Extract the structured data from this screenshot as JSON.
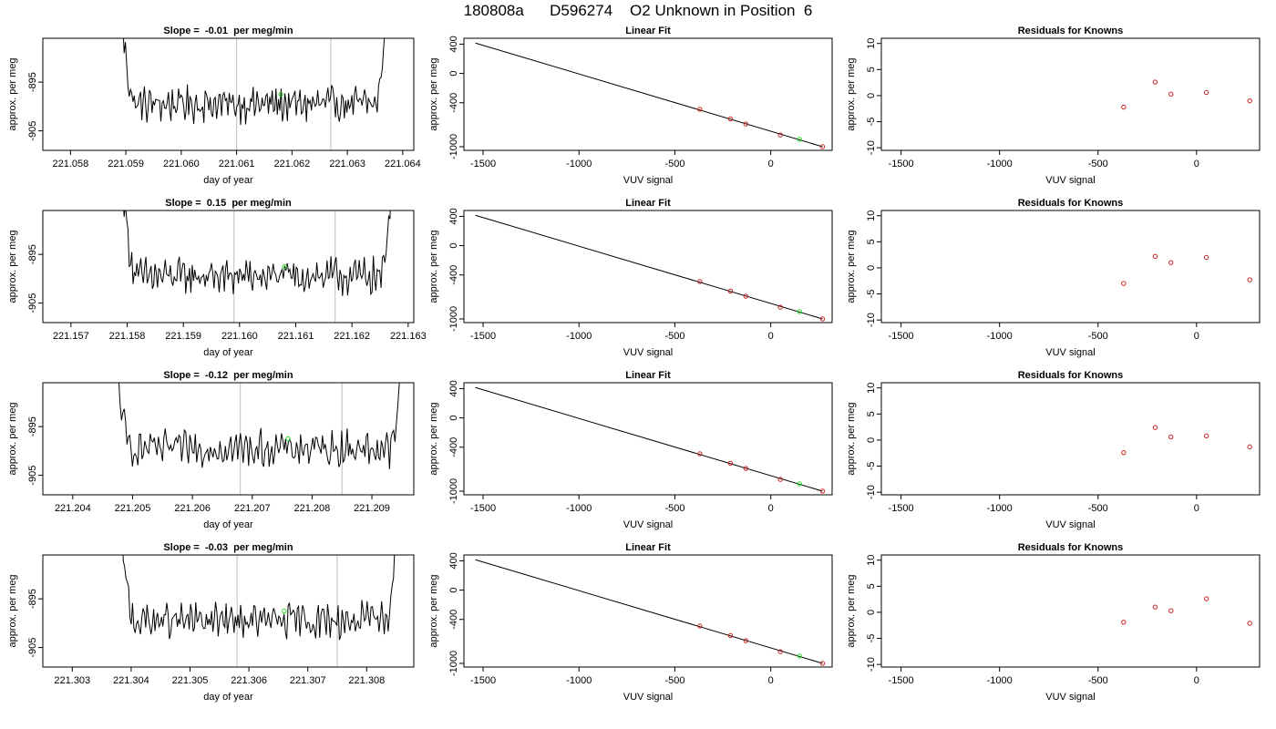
{
  "title": "180808a      D596274    O2 Unknown in Position  6",
  "rows": [
    {
      "timeseries": {
        "type": "line",
        "title": "Slope =  -0.01  per meg/min",
        "xlabel": "day of year",
        "ylabel": "approx. per meg",
        "xlim": [
          221.0575,
          221.0642
        ],
        "ylim": [
          -909,
          -886
        ],
        "xticks": [
          221.058,
          221.059,
          221.06,
          221.061,
          221.062,
          221.063,
          221.064
        ],
        "xtick_labels": [
          "221.058",
          "221.059",
          "221.060",
          "221.061",
          "221.062",
          "221.063",
          "221.064"
        ],
        "yticks": [
          -895,
          -905
        ],
        "ytick_labels": [
          "-895",
          "-905"
        ],
        "x_start": 221.0589,
        "x_end": 221.0637,
        "vlines": [
          221.061,
          221.0627
        ],
        "marker": {
          "x": 221.0618,
          "y": -897.5
        }
      },
      "fit": {
        "type": "scatter",
        "title": "Linear Fit",
        "xlabel": "VUV signal",
        "ylabel": "approx. per meg",
        "xlim": [
          -1600,
          320
        ],
        "ylim": [
          -1050,
          480
        ],
        "xticks": [
          -1500,
          -1000,
          -500,
          0
        ],
        "xtick_labels": [
          "-1500",
          "-1000",
          "-500",
          "0"
        ],
        "yticks": [
          400,
          0,
          -400,
          -1000
        ],
        "ytick_labels": [
          "400",
          "0",
          "-400",
          "-1000"
        ],
        "line": [
          [
            -1540,
            415
          ],
          [
            270,
            -1000
          ]
        ],
        "knowns": [
          [
            -370,
            -490
          ],
          [
            -210,
            -620
          ],
          [
            -130,
            -690
          ],
          [
            50,
            -840
          ],
          [
            270,
            -1000
          ]
        ],
        "unknown": [
          150,
          -900
        ]
      },
      "residuals": {
        "type": "scatter",
        "title": "Residuals for Knowns",
        "xlabel": "VUV signal",
        "ylabel": "approx. per meg",
        "xlim": [
          -1600,
          320
        ],
        "ylim": [
          -10.5,
          11
        ],
        "xticks": [
          -1500,
          -1000,
          -500,
          0
        ],
        "xtick_labels": [
          "-1500",
          "-1000",
          "-500",
          "0"
        ],
        "yticks": [
          10,
          5,
          0,
          -5,
          -10
        ],
        "ytick_labels": [
          "10",
          "5",
          "0",
          "-5",
          "-10"
        ],
        "points": [
          [
            -370,
            -2.2
          ],
          [
            -210,
            2.6
          ],
          [
            -130,
            0.3
          ],
          [
            50,
            0.6
          ],
          [
            270,
            -1.0
          ]
        ]
      }
    },
    {
      "timeseries": {
        "type": "line",
        "title": "Slope =  0.15  per meg/min",
        "xlabel": "day of year",
        "ylabel": "approx. per meg",
        "xlim": [
          221.1565,
          221.1631
        ],
        "ylim": [
          -909,
          -886
        ],
        "xticks": [
          221.157,
          221.158,
          221.159,
          221.16,
          221.161,
          221.162,
          221.163
        ],
        "xtick_labels": [
          "221.157",
          "221.158",
          "221.159",
          "221.160",
          "221.161",
          "221.162",
          "221.163"
        ],
        "yticks": [
          -895,
          -905
        ],
        "ytick_labels": [
          "-895",
          "-905"
        ],
        "x_start": 221.1579,
        "x_end": 221.1627,
        "vlines": [
          221.1599,
          221.1617
        ],
        "marker": {
          "x": 221.1608,
          "y": -897.5
        }
      },
      "fit": {
        "type": "scatter",
        "title": "Linear Fit",
        "xlabel": "VUV signal",
        "ylabel": "approx. per meg",
        "xlim": [
          -1600,
          320
        ],
        "ylim": [
          -1050,
          480
        ],
        "xticks": [
          -1500,
          -1000,
          -500,
          0
        ],
        "xtick_labels": [
          "-1500",
          "-1000",
          "-500",
          "0"
        ],
        "yticks": [
          400,
          0,
          -400,
          -1000
        ],
        "ytick_labels": [
          "400",
          "0",
          "-400",
          "-1000"
        ],
        "line": [
          [
            -1540,
            415
          ],
          [
            270,
            -1000
          ]
        ],
        "knowns": [
          [
            -370,
            -490
          ],
          [
            -210,
            -620
          ],
          [
            -130,
            -690
          ],
          [
            50,
            -840
          ],
          [
            270,
            -1000
          ]
        ],
        "unknown": [
          150,
          -900
        ]
      },
      "residuals": {
        "type": "scatter",
        "title": "Residuals for Knowns",
        "xlabel": "VUV signal",
        "ylabel": "approx. per meg",
        "xlim": [
          -1600,
          320
        ],
        "ylim": [
          -10.5,
          11
        ],
        "xticks": [
          -1500,
          -1000,
          -500,
          0
        ],
        "xtick_labels": [
          "-1500",
          "-1000",
          "-500",
          "0"
        ],
        "yticks": [
          10,
          5,
          0,
          -5,
          -10
        ],
        "ytick_labels": [
          "10",
          "5",
          "0",
          "-5",
          "-10"
        ],
        "points": [
          [
            -370,
            -3.0
          ],
          [
            -210,
            2.2
          ],
          [
            -130,
            1.0
          ],
          [
            50,
            2.0
          ],
          [
            270,
            -2.3
          ]
        ]
      }
    },
    {
      "timeseries": {
        "type": "line",
        "title": "Slope =  -0.12  per meg/min",
        "xlabel": "day of year",
        "ylabel": "approx. per meg",
        "xlim": [
          221.2035,
          221.2097
        ],
        "ylim": [
          -909,
          -886
        ],
        "xticks": [
          221.204,
          221.205,
          221.206,
          221.207,
          221.208,
          221.209
        ],
        "xtick_labels": [
          "221.204",
          "221.205",
          "221.206",
          "221.207",
          "221.208",
          "221.209"
        ],
        "yticks": [
          -895,
          -905
        ],
        "ytick_labels": [
          "-895",
          "-905"
        ],
        "x_start": 221.2047,
        "x_end": 221.2095,
        "vlines": [
          221.2068,
          221.2085
        ],
        "marker": {
          "x": 221.2076,
          "y": -897.5
        }
      },
      "fit": {
        "type": "scatter",
        "title": "Linear Fit",
        "xlabel": "VUV signal",
        "ylabel": "approx. per meg",
        "xlim": [
          -1600,
          320
        ],
        "ylim": [
          -1050,
          480
        ],
        "xticks": [
          -1500,
          -1000,
          -500,
          0
        ],
        "xtick_labels": [
          "-1500",
          "-1000",
          "-500",
          "0"
        ],
        "yticks": [
          400,
          0,
          -400,
          -1000
        ],
        "ytick_labels": [
          "400",
          "0",
          "-400",
          "-1000"
        ],
        "line": [
          [
            -1540,
            415
          ],
          [
            270,
            -1000
          ]
        ],
        "knowns": [
          [
            -370,
            -490
          ],
          [
            -210,
            -620
          ],
          [
            -130,
            -690
          ],
          [
            50,
            -840
          ],
          [
            270,
            -1000
          ]
        ],
        "unknown": [
          150,
          -900
        ]
      },
      "residuals": {
        "type": "scatter",
        "title": "Residuals for Knowns",
        "xlabel": "VUV signal",
        "ylabel": "approx. per meg",
        "xlim": [
          -1600,
          320
        ],
        "ylim": [
          -10.5,
          11
        ],
        "xticks": [
          -1500,
          -1000,
          -500,
          0
        ],
        "xtick_labels": [
          "-1500",
          "-1000",
          "-500",
          "0"
        ],
        "yticks": [
          10,
          5,
          0,
          -5,
          -10
        ],
        "ytick_labels": [
          "10",
          "5",
          "0",
          "-5",
          "-10"
        ],
        "points": [
          [
            -370,
            -2.4
          ],
          [
            -210,
            2.4
          ],
          [
            -130,
            0.6
          ],
          [
            50,
            0.8
          ],
          [
            270,
            -1.3
          ]
        ]
      }
    },
    {
      "timeseries": {
        "type": "line",
        "title": "Slope =  -0.03  per meg/min",
        "xlabel": "day of year",
        "ylabel": "approx. per meg",
        "xlim": [
          221.3025,
          221.3088
        ],
        "ylim": [
          -909,
          -886
        ],
        "xticks": [
          221.303,
          221.304,
          221.305,
          221.306,
          221.307,
          221.308
        ],
        "xtick_labels": [
          "221.303",
          "221.304",
          "221.305",
          "221.306",
          "221.307",
          "221.308"
        ],
        "yticks": [
          -895,
          -905
        ],
        "ytick_labels": [
          "-895",
          "-905"
        ],
        "x_start": 221.3038,
        "x_end": 221.3085,
        "vlines": [
          221.3058,
          221.3075
        ],
        "marker": {
          "x": 221.3066,
          "y": -897.5
        }
      },
      "fit": {
        "type": "scatter",
        "title": "Linear Fit",
        "xlabel": "VUV signal",
        "ylabel": "approx. per meg",
        "xlim": [
          -1600,
          320
        ],
        "ylim": [
          -1050,
          480
        ],
        "xticks": [
          -1500,
          -1000,
          -500,
          0
        ],
        "xtick_labels": [
          "-1500",
          "-1000",
          "-500",
          "0"
        ],
        "yticks": [
          400,
          0,
          -400,
          -1000
        ],
        "ytick_labels": [
          "400",
          "0",
          "-400",
          "-1000"
        ],
        "line": [
          [
            -1540,
            415
          ],
          [
            270,
            -1000
          ]
        ],
        "knowns": [
          [
            -370,
            -490
          ],
          [
            -210,
            -620
          ],
          [
            -130,
            -690
          ],
          [
            50,
            -840
          ],
          [
            270,
            -1000
          ]
        ],
        "unknown": [
          150,
          -900
        ]
      },
      "residuals": {
        "type": "scatter",
        "title": "Residuals for Knowns",
        "xlabel": "VUV signal",
        "ylabel": "approx. per meg",
        "xlim": [
          -1600,
          320
        ],
        "ylim": [
          -10.5,
          11
        ],
        "xticks": [
          -1500,
          -1000,
          -500,
          0
        ],
        "xtick_labels": [
          "-1500",
          "-1000",
          "-500",
          "0"
        ],
        "yticks": [
          10,
          5,
          0,
          -5,
          -10
        ],
        "ytick_labels": [
          "10",
          "5",
          "0",
          "-5",
          "-10"
        ],
        "points": [
          [
            -370,
            -1.9
          ],
          [
            -210,
            1.0
          ],
          [
            -130,
            0.3
          ],
          [
            50,
            2.6
          ],
          [
            270,
            -2.1
          ]
        ]
      }
    }
  ],
  "colors": {
    "line": "#000000",
    "vline": "#c8c8c8",
    "known_point": "#cc2222",
    "unknown_point": "#22dd22",
    "axis": "#000000"
  }
}
